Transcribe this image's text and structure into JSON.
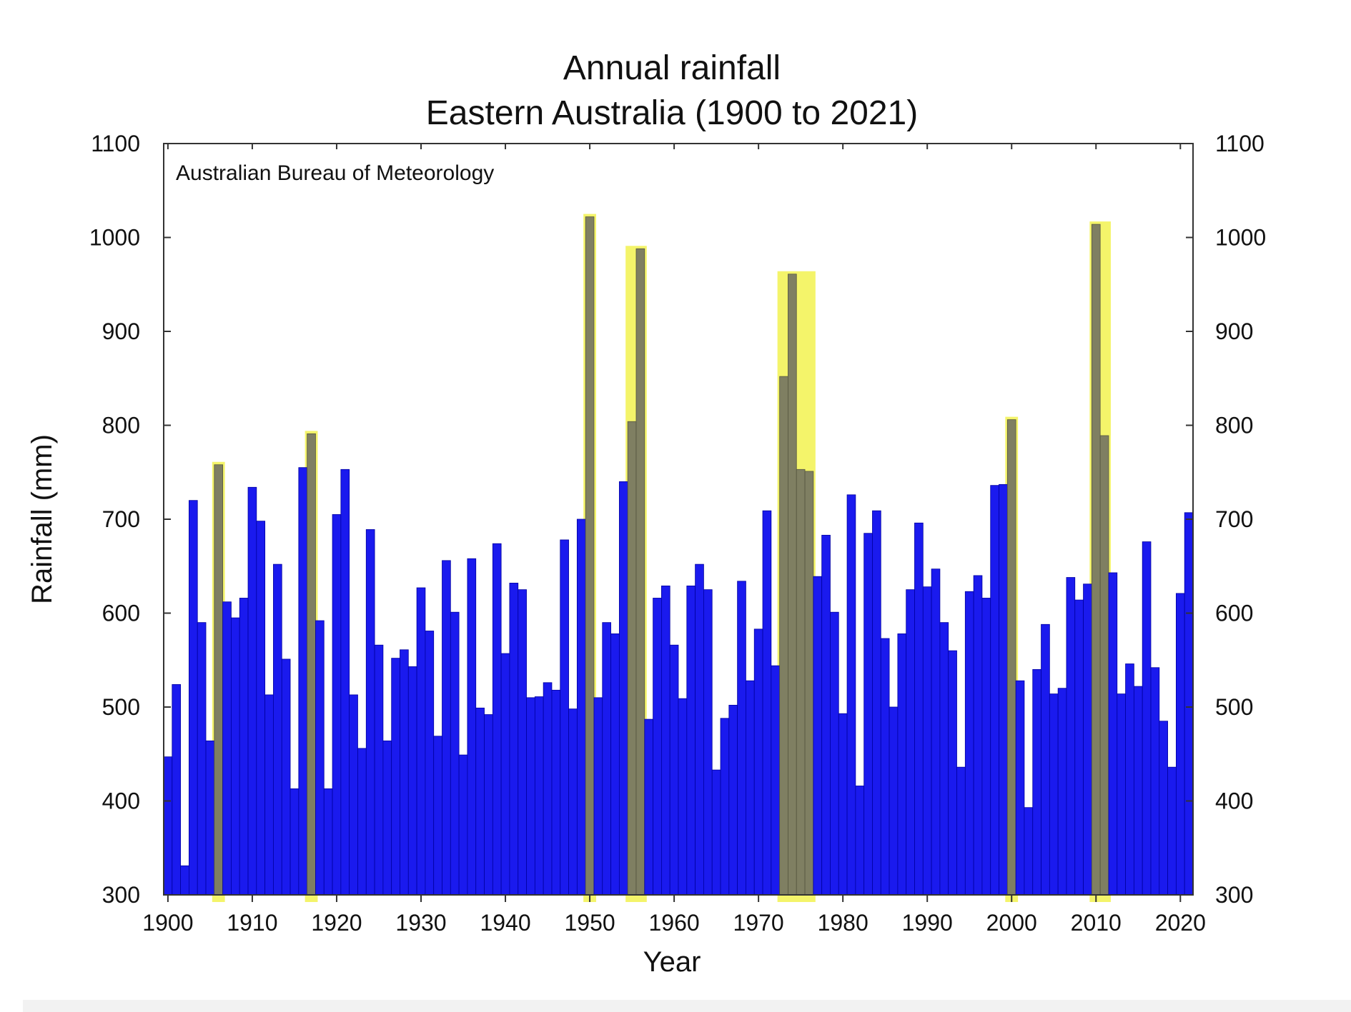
{
  "chart_data": {
    "type": "bar",
    "title": "Annual rainfall",
    "subtitle": "Eastern Australia (1900 to 2021)",
    "annotation": "Australian Bureau of Meteorology",
    "xlabel": "Year",
    "ylabel": "Rainfall (mm)",
    "ylim": [
      300,
      1100
    ],
    "xlim": [
      1899.5,
      2021.5
    ],
    "y_ticks": [
      300,
      400,
      500,
      600,
      700,
      800,
      900,
      1000,
      1100
    ],
    "x_ticks": [
      1900,
      1910,
      1920,
      1930,
      1940,
      1950,
      1960,
      1970,
      1980,
      1990,
      2000,
      2010,
      2020
    ],
    "y_axis_both_sides": true,
    "grid": false,
    "colors": {
      "bar": "#1a1aee",
      "bar_stroke": "#0000a0",
      "highlight": "#f4f46a",
      "highlighted_bar": "#7f7f62"
    },
    "x": [
      1900,
      1901,
      1902,
      1903,
      1904,
      1905,
      1906,
      1907,
      1908,
      1909,
      1910,
      1911,
      1912,
      1913,
      1914,
      1915,
      1916,
      1917,
      1918,
      1919,
      1920,
      1921,
      1922,
      1923,
      1924,
      1925,
      1926,
      1927,
      1928,
      1929,
      1930,
      1931,
      1932,
      1933,
      1934,
      1935,
      1936,
      1937,
      1938,
      1939,
      1940,
      1941,
      1942,
      1943,
      1944,
      1945,
      1946,
      1947,
      1948,
      1949,
      1950,
      1951,
      1952,
      1953,
      1954,
      1955,
      1956,
      1957,
      1958,
      1959,
      1960,
      1961,
      1962,
      1963,
      1964,
      1965,
      1966,
      1967,
      1968,
      1969,
      1970,
      1971,
      1972,
      1973,
      1974,
      1975,
      1976,
      1977,
      1978,
      1979,
      1980,
      1981,
      1982,
      1983,
      1984,
      1985,
      1986,
      1987,
      1988,
      1989,
      1990,
      1991,
      1992,
      1993,
      1994,
      1995,
      1996,
      1997,
      1998,
      1999,
      2000,
      2001,
      2002,
      2003,
      2004,
      2005,
      2006,
      2007,
      2008,
      2009,
      2010,
      2011,
      2012,
      2013,
      2014,
      2015,
      2016,
      2017,
      2018,
      2019,
      2020,
      2021
    ],
    "values": [
      447,
      524,
      331,
      720,
      590,
      464,
      758,
      612,
      595,
      616,
      734,
      698,
      513,
      652,
      551,
      413,
      755,
      791,
      592,
      413,
      705,
      753,
      513,
      456,
      689,
      566,
      464,
      552,
      561,
      543,
      627,
      581,
      469,
      656,
      601,
      449,
      658,
      499,
      492,
      674,
      557,
      632,
      625,
      510,
      511,
      526,
      518,
      678,
      498,
      700,
      1022,
      510,
      590,
      578,
      740,
      804,
      988,
      487,
      616,
      629,
      566,
      509,
      629,
      652,
      625,
      433,
      488,
      502,
      634,
      528,
      583,
      709,
      544,
      852,
      961,
      753,
      751,
      639,
      683,
      601,
      493,
      726,
      416,
      685,
      709,
      573,
      500,
      578,
      625,
      696,
      628,
      647,
      590,
      560,
      436,
      623,
      640,
      616,
      736,
      737,
      806,
      528,
      393,
      540,
      588,
      514,
      520,
      638,
      614,
      631,
      1014,
      789,
      643,
      514,
      546,
      522,
      676,
      542,
      485,
      436,
      621,
      707
    ],
    "highlighted_years": [
      1906,
      1917,
      1950,
      1955,
      1956,
      1973,
      1974,
      1975,
      1976,
      2000,
      2010,
      2011
    ]
  }
}
